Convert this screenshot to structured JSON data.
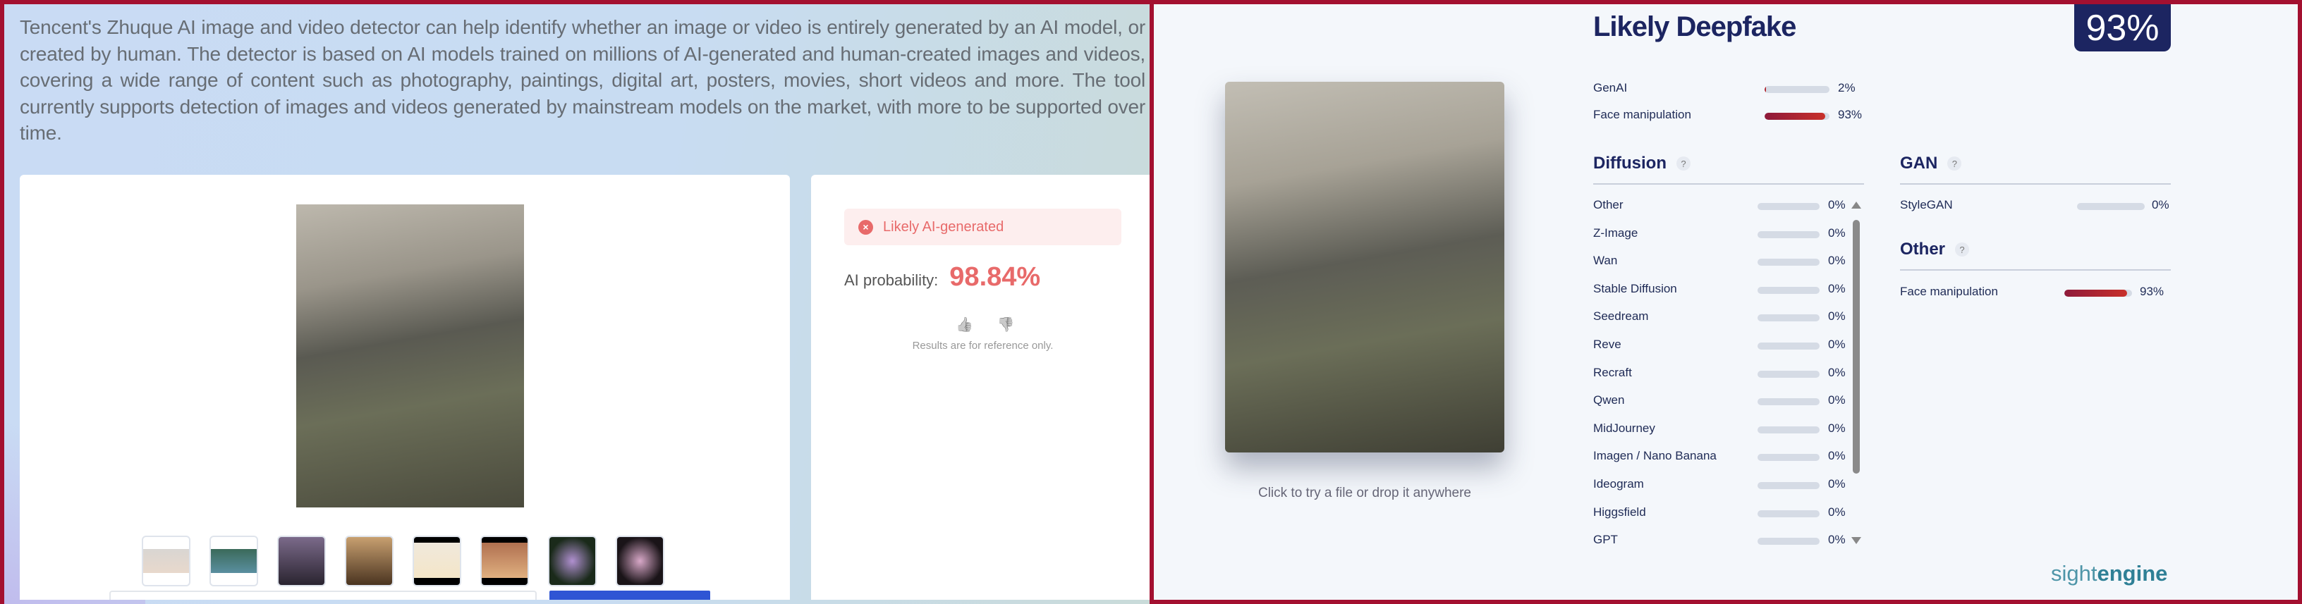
{
  "left": {
    "intro": "Tencent's Zhuque AI image and video detector can help identify whether an image or video is entirely generated by an AI model, or created by human. The detector is based on AI models trained on millions of AI-generated and human-created images and videos, covering a wide range of content such as photography, paintings, digital art, posters, movies, short videos and more. The tool currently supports detection of images and videos generated by mainstream models on the market, with more to be supported over time.",
    "thumbnail_count": 8,
    "result": {
      "alert": "Likely AI-generated",
      "prob_label": "AI probability:",
      "prob_value": "98.84%",
      "feedback_up": "👍",
      "feedback_down": "👎",
      "note": "Results are for reference only."
    },
    "colors": {
      "alert": "#e86a6a",
      "button": "#2f55d4"
    }
  },
  "right": {
    "caption": "Click to try a file or drop it anywhere",
    "title": "Likely Deepfake",
    "score": "93%",
    "summary": [
      {
        "name": "GenAI",
        "value": 2,
        "label": "2%"
      },
      {
        "name": "Face manipulation",
        "value": 93,
        "label": "93%"
      }
    ],
    "diffusion": {
      "title": "Diffusion",
      "help": "?",
      "items": [
        {
          "name": "Other",
          "value": 0,
          "label": "0%"
        },
        {
          "name": "Z-Image",
          "value": 0,
          "label": "0%"
        },
        {
          "name": "Wan",
          "value": 0,
          "label": "0%"
        },
        {
          "name": "Stable Diffusion",
          "value": 0,
          "label": "0%"
        },
        {
          "name": "Seedream",
          "value": 0,
          "label": "0%"
        },
        {
          "name": "Reve",
          "value": 0,
          "label": "0%"
        },
        {
          "name": "Recraft",
          "value": 0,
          "label": "0%"
        },
        {
          "name": "Qwen",
          "value": 0,
          "label": "0%"
        },
        {
          "name": "MidJourney",
          "value": 0,
          "label": "0%"
        },
        {
          "name": "Imagen / Nano Banana",
          "value": 0,
          "label": "0%"
        },
        {
          "name": "Ideogram",
          "value": 0,
          "label": "0%"
        },
        {
          "name": "Higgsfield",
          "value": 0,
          "label": "0%"
        },
        {
          "name": "GPT",
          "value": 0,
          "label": "0%"
        }
      ]
    },
    "gan": {
      "title": "GAN",
      "help": "?",
      "items": [
        {
          "name": "StyleGAN",
          "value": 0,
          "label": "0%"
        }
      ]
    },
    "other": {
      "title": "Other",
      "help": "?",
      "items": [
        {
          "name": "Face manipulation",
          "value": 93,
          "label": "93%"
        }
      ]
    },
    "logo": {
      "light": "sight",
      "bold": "engine"
    },
    "colors": {
      "navy": "#1c2561",
      "bar": "#c8302a",
      "track": "#d5dbe5"
    }
  }
}
